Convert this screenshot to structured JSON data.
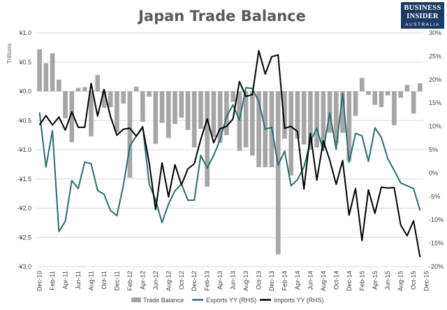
{
  "brand": {
    "line1": "BUSINESS",
    "line2": "INSIDER",
    "line3": "AUSTRALIA"
  },
  "chart_data": {
    "type": "bar",
    "title": "Japan Trade Balance",
    "ylabel": "Trillions",
    "y_left": {
      "min": -3.0,
      "max": 1.0,
      "ticks": [
        1.0,
        0.5,
        0.0,
        -0.5,
        -1.0,
        -1.5,
        -2.0,
        -2.5,
        -3.0
      ],
      "tick_labels": [
        "¥1.0",
        "¥0.5",
        "¥0.0",
        "-¥0.5",
        "-¥1.0",
        "-¥1.5",
        "-¥2.0",
        "-¥2.5",
        "-¥3.0"
      ]
    },
    "y_right": {
      "min": -20,
      "max": 30,
      "ticks": [
        30,
        25,
        20,
        15,
        10,
        5,
        0,
        -5,
        -10,
        -15,
        -20
      ],
      "tick_labels": [
        "30%",
        "25%",
        "20%",
        "15%",
        "10%",
        "5%",
        "0%",
        "-5%",
        "-10%",
        "-15%",
        "-20%"
      ]
    },
    "x_tick_labels": [
      "Dec-10",
      "Feb-11",
      "Apr-11",
      "Jun-11",
      "Aug-11",
      "Oct-11",
      "Dec-11",
      "Feb-12",
      "Apr-12",
      "Jun-12",
      "Aug-12",
      "Oct-12",
      "Dec-12",
      "Feb-13",
      "Apr-13",
      "Jun-13",
      "Aug-13",
      "Oct-13",
      "Dec-13",
      "Feb-14",
      "Apr-14",
      "Jun-14",
      "Aug-14",
      "Oct-14",
      "Dec-14",
      "Feb-15",
      "Apr-15",
      "Jun-15",
      "Aug-15",
      "Oct-15",
      "Dec-15"
    ],
    "grid": true,
    "legend_position": "bottom",
    "series": [
      {
        "name": "Trade Balance",
        "axis": "left",
        "kind": "bar",
        "color": "#a6a6a6",
        "values": [
          0.72,
          0.48,
          0.65,
          0.2,
          -0.46,
          -0.87,
          0.06,
          0.07,
          -0.77,
          0.28,
          -0.28,
          -0.27,
          -0.7,
          -0.21,
          -1.48,
          0.08,
          -0.52,
          -0.09,
          -0.9,
          -0.54,
          -0.8,
          -0.56,
          -0.45,
          -0.66,
          -0.96,
          -0.64,
          -1.63,
          -0.78,
          -0.88,
          -0.75,
          -0.18,
          -1.02,
          -0.96,
          -1.1,
          -1.3,
          -1.3,
          -1.3,
          -2.79,
          -0.81,
          -1.44,
          -0.81,
          -0.91,
          -1.0,
          -0.96,
          -0.95,
          -0.71,
          -0.89,
          -0.71,
          -1.19,
          -0.42,
          0.23,
          -0.06,
          -0.23,
          -0.27,
          -0.07,
          -0.58,
          -0.11,
          0.11,
          -0.38,
          0.14
        ]
      },
      {
        "name": "Exports YY (RHS)",
        "axis": "right",
        "kind": "line",
        "color": "#2e6b6f",
        "values": [
          13,
          1.3,
          9.1,
          -12.5,
          -10.3,
          -1.6,
          -3.3,
          2.4,
          2.0,
          -3.7,
          -4.5,
          -8.0,
          -9.1,
          -2.6,
          5.8,
          7.9,
          10.0,
          -2.3,
          -5.8,
          -10.6,
          -6.6,
          -3.8,
          -2.3,
          -5.8,
          -5.8,
          3.8,
          1.1,
          3.8,
          7.1,
          12.1,
          14.6,
          11.3,
          18.3,
          18.1,
          15.3,
          9.4,
          9.8,
          1.7,
          4.7,
          -2.7,
          -1.4,
          1.3,
          6.8,
          9.6,
          4.8,
          12.9,
          5.1,
          17.0,
          2.3,
          8.5,
          8.0,
          2.5,
          9.7,
          7.6,
          3.1,
          0.6,
          -2.1,
          -2.7,
          -3.3,
          -8.0
        ]
      },
      {
        "name": "Imports YY (RHS)",
        "axis": "right",
        "kind": "line",
        "color": "#000000",
        "values": [
          10.3,
          12.3,
          10.3,
          12.0,
          9.2,
          13.1,
          9.8,
          9.8,
          19.2,
          12.2,
          17.9,
          12.1,
          8.1,
          9.4,
          9.6,
          7.9,
          9.8,
          2.2,
          -7.8,
          2.2,
          -5.1,
          1.8,
          -2.5,
          0.9,
          2.0,
          7.2,
          11.6,
          6.5,
          9.5,
          10.0,
          11.6,
          19.6,
          16.4,
          16.8,
          26.2,
          21.2,
          24.9,
          25.3,
          9.6,
          10.0,
          8.9,
          -3.4,
          8.5,
          -1.5,
          6.9,
          2.8,
          -2.4,
          2.7,
          -9.0,
          -3.3,
          -14.4,
          -3.6,
          -8.6,
          -3.0,
          -3.2,
          -3.1,
          -11.1,
          -13.4,
          -10.2,
          -18.0
        ]
      }
    ]
  }
}
